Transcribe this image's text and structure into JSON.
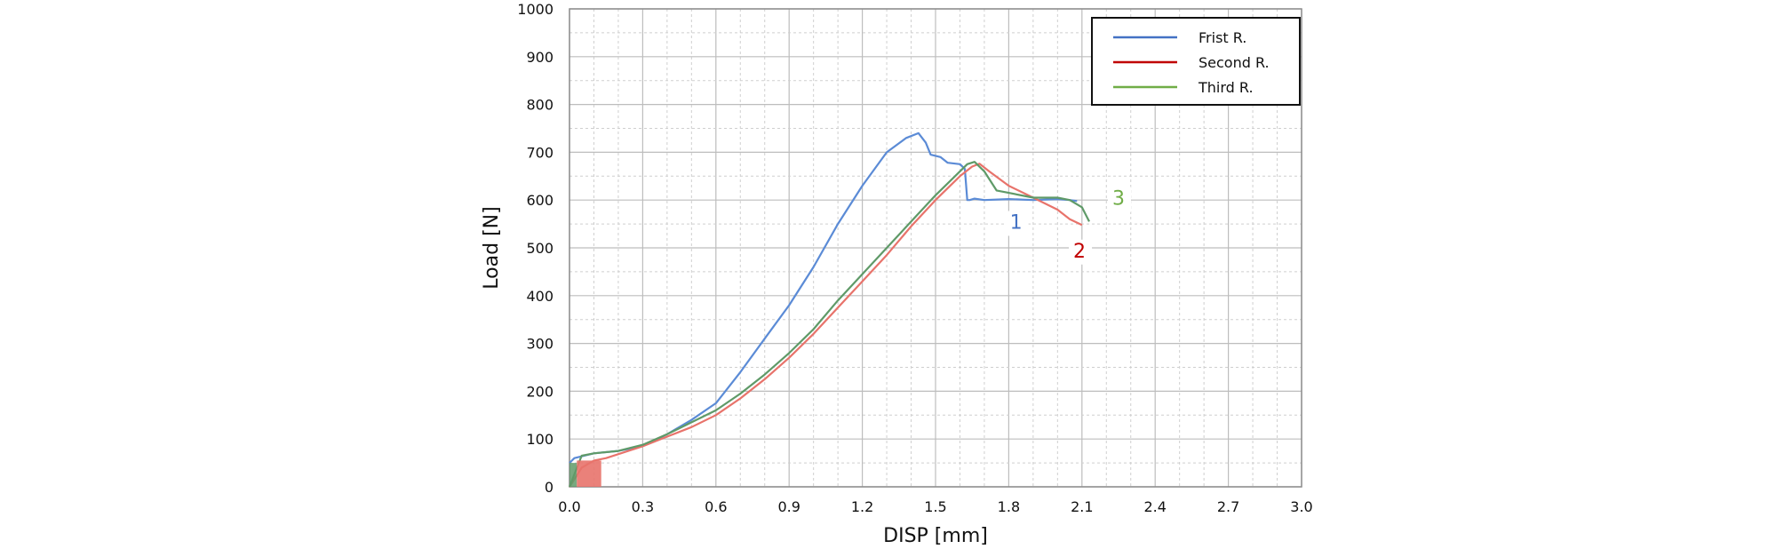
{
  "chart_data": {
    "type": "line",
    "xlabel": "DISP [mm]",
    "ylabel": "Load [N]",
    "xlim": [
      0,
      3.0
    ],
    "ylim": [
      0,
      1000
    ],
    "x_ticks": [
      "0.0",
      "0.3",
      "0.6",
      "0.9",
      "1.2",
      "1.5",
      "1.8",
      "2.1",
      "2.4",
      "2.7",
      "3.0"
    ],
    "y_ticks": [
      "0",
      "100",
      "200",
      "300",
      "400",
      "500",
      "600",
      "700",
      "800",
      "900",
      "1000"
    ],
    "grid": true,
    "legend_position": "top-right",
    "series": [
      {
        "name": "Frist R.",
        "color": "#4472C4",
        "label": "1",
        "label_color": "#4472C4",
        "x": [
          0.0,
          0.02,
          0.1,
          0.2,
          0.3,
          0.4,
          0.5,
          0.6,
          0.7,
          0.8,
          0.9,
          1.0,
          1.1,
          1.2,
          1.3,
          1.38,
          1.43,
          1.46,
          1.48,
          1.52,
          1.55,
          1.6,
          1.62,
          1.63,
          1.64,
          1.66,
          1.7,
          1.8,
          1.9,
          2.0,
          2.05,
          2.08
        ],
        "y": [
          50,
          60,
          70,
          75,
          85,
          110,
          140,
          175,
          240,
          310,
          380,
          460,
          550,
          630,
          700,
          730,
          740,
          720,
          695,
          690,
          678,
          675,
          665,
          600,
          600,
          603,
          600,
          602,
          600,
          602,
          600,
          598
        ]
      },
      {
        "name": "Second R.",
        "color": "#C00000",
        "label": "2",
        "label_color": "#C00000",
        "x": [
          0.0,
          0.05,
          0.1,
          0.15,
          0.3,
          0.4,
          0.5,
          0.6,
          0.7,
          0.8,
          0.9,
          1.0,
          1.1,
          1.2,
          1.3,
          1.4,
          1.5,
          1.6,
          1.65,
          1.68,
          1.72,
          1.8,
          1.9,
          2.0,
          2.05,
          2.1
        ],
        "y": [
          0,
          40,
          55,
          60,
          85,
          105,
          125,
          150,
          185,
          225,
          270,
          320,
          375,
          430,
          485,
          545,
          600,
          650,
          670,
          676,
          660,
          630,
          605,
          580,
          560,
          548
        ]
      },
      {
        "name": "Third R.",
        "color": "#70AD47",
        "label": "3",
        "label_color": "#70AD47",
        "x": [
          0.0,
          0.05,
          0.1,
          0.2,
          0.3,
          0.4,
          0.5,
          0.6,
          0.7,
          0.8,
          0.9,
          1.0,
          1.1,
          1.2,
          1.3,
          1.4,
          1.5,
          1.58,
          1.63,
          1.66,
          1.7,
          1.75,
          1.8,
          1.9,
          2.0,
          2.05,
          2.1,
          2.13
        ],
        "y": [
          0,
          65,
          70,
          75,
          88,
          110,
          135,
          160,
          195,
          235,
          280,
          330,
          390,
          445,
          500,
          555,
          610,
          650,
          675,
          680,
          660,
          620,
          615,
          605,
          605,
          600,
          585,
          555
        ]
      }
    ],
    "legend": [
      "Frist R.",
      "Second R.",
      "Third R."
    ]
  }
}
